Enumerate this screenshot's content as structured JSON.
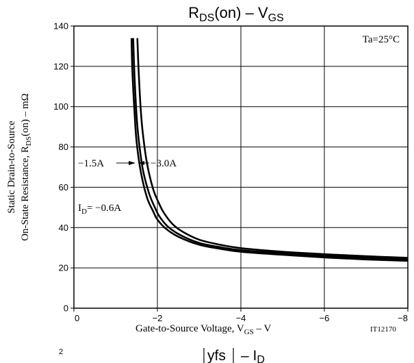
{
  "chart_data": {
    "type": "line",
    "title": {
      "main": "R",
      "sub1": "DS",
      "mid": "(on) – V",
      "sub2": "GS"
    },
    "next_title": {
      "bar_text": "yfs",
      "main": "– I",
      "sub": "D"
    },
    "next_title_partial_digit": "2",
    "annotation_temp": "Ta=25°C",
    "figure_code": "IT12170",
    "xlabel": {
      "pre": "Gate-to-Source Voltage, V",
      "sub": "GS",
      "post": " – V"
    },
    "ylabel_line1": "Static Drain-to-Source",
    "ylabel_line2": {
      "pre": "On-State Resistance, R",
      "sub": "DS",
      "post": "(on) – mΩ"
    },
    "x_ticks": [
      {
        "value": 0,
        "label": "0"
      },
      {
        "value": -2,
        "label": "−2"
      },
      {
        "value": -4,
        "label": "−4"
      },
      {
        "value": -6,
        "label": "−6"
      },
      {
        "value": -8,
        "label": "−8"
      }
    ],
    "y_ticks": [
      {
        "value": 0,
        "label": "0"
      },
      {
        "value": 20,
        "label": "20"
      },
      {
        "value": 40,
        "label": "40"
      },
      {
        "value": 60,
        "label": "60"
      },
      {
        "value": 80,
        "label": "80"
      },
      {
        "value": 100,
        "label": "100"
      },
      {
        "value": 120,
        "label": "120"
      },
      {
        "value": 140,
        "label": "140"
      }
    ],
    "xlim": [
      0,
      -8
    ],
    "ylim": [
      0,
      140
    ],
    "grid": true,
    "line_color": "#000000",
    "series_labels": {
      "left": "−1.5A",
      "right": "−3.0A",
      "id_pre": "I",
      "id_sub": "D",
      "id_post": "= −0.6A"
    },
    "series": [
      {
        "name": "−0.6A",
        "x": [
          -1.38,
          -1.4,
          -1.45,
          -1.5,
          -1.6,
          -1.75,
          -1.9,
          -2.0,
          -2.2,
          -2.5,
          -3.0,
          -3.5,
          -4.0,
          -5.0,
          -6.0,
          -7.0,
          -8.0
        ],
        "y": [
          134,
          118,
          98,
          83,
          68,
          55,
          48,
          44,
          39.5,
          35.5,
          31.5,
          29.5,
          28,
          26.5,
          25.2,
          24.2,
          23.5
        ]
      },
      {
        "name": "−1.5A",
        "x": [
          -1.42,
          -1.45,
          -1.5,
          -1.55,
          -1.65,
          -1.8,
          -1.95,
          -2.05,
          -2.25,
          -2.55,
          -3.0,
          -3.5,
          -4.0,
          -5.0,
          -6.0,
          -7.0,
          -8.0
        ],
        "y": [
          134,
          116,
          96,
          84,
          69,
          57,
          49.5,
          45.5,
          40.5,
          36.3,
          32.4,
          30.3,
          28.8,
          27.2,
          26,
          25,
          24.3
        ]
      },
      {
        "name": "−3.0A",
        "x": [
          -1.52,
          -1.55,
          -1.6,
          -1.65,
          -1.75,
          -1.9,
          -2.05,
          -2.15,
          -2.35,
          -2.6,
          -3.0,
          -3.5,
          -4.0,
          -5.0,
          -6.0,
          -7.0,
          -8.0
        ],
        "y": [
          134,
          118,
          99,
          87,
          72,
          59,
          51.5,
          47.5,
          42,
          38,
          34,
          31.5,
          29.8,
          28,
          26.8,
          25.8,
          25
        ]
      }
    ]
  }
}
